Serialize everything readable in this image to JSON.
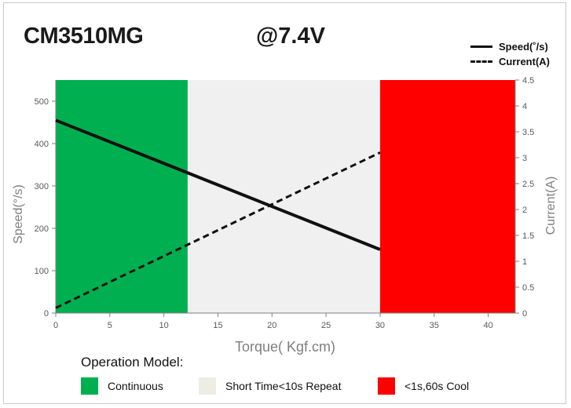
{
  "title": "CM3510MG",
  "subtitle": "@7.4V",
  "legend": {
    "speed": "Speed(˚/s)",
    "current": "Current(A)"
  },
  "operation_model": {
    "title": "Operation Model:",
    "zones": [
      {
        "label": "Continuous",
        "color": "#00b050"
      },
      {
        "label": "Short Time<10s Repeat",
        "color": "#eeede3"
      },
      {
        "label": "<1s,60s Cool",
        "color": "#ff0000"
      }
    ]
  },
  "chart_data": {
    "type": "line",
    "xlabel": "Torque( Kgf.cm)",
    "ylabel": "Speed(°/s)",
    "y2label": "Current(A)",
    "xlim": [
      0,
      42.5
    ],
    "ylim": [
      0,
      550
    ],
    "y2lim": [
      0,
      4.5
    ],
    "xticks": [
      0,
      5,
      10,
      15,
      20,
      25,
      30,
      35,
      40
    ],
    "yticks": [
      0,
      100,
      200,
      300,
      400,
      500
    ],
    "y2ticks": [
      0,
      0.5,
      1,
      1.5,
      2,
      2.5,
      3,
      3.5,
      4,
      4.5
    ],
    "grid": false,
    "legend_position": "top-right",
    "regions": [
      {
        "label": "Continuous",
        "x": [
          0,
          12.2
        ],
        "color": "#00b050"
      },
      {
        "label": "Short Time<10s Repeat",
        "x": [
          12.2,
          30
        ],
        "color": "#f0f0f0"
      },
      {
        "label": "<1s,60s Cool",
        "x": [
          30,
          42.5
        ],
        "color": "#ff0000"
      }
    ],
    "series": [
      {
        "name": "Speed(˚/s)",
        "axis": "left",
        "style": "solid",
        "x": [
          0,
          30
        ],
        "y": [
          455,
          150
        ]
      },
      {
        "name": "Current(A)",
        "axis": "right",
        "style": "dashed",
        "x": [
          0,
          30
        ],
        "y": [
          0.1,
          3.1
        ]
      }
    ]
  }
}
